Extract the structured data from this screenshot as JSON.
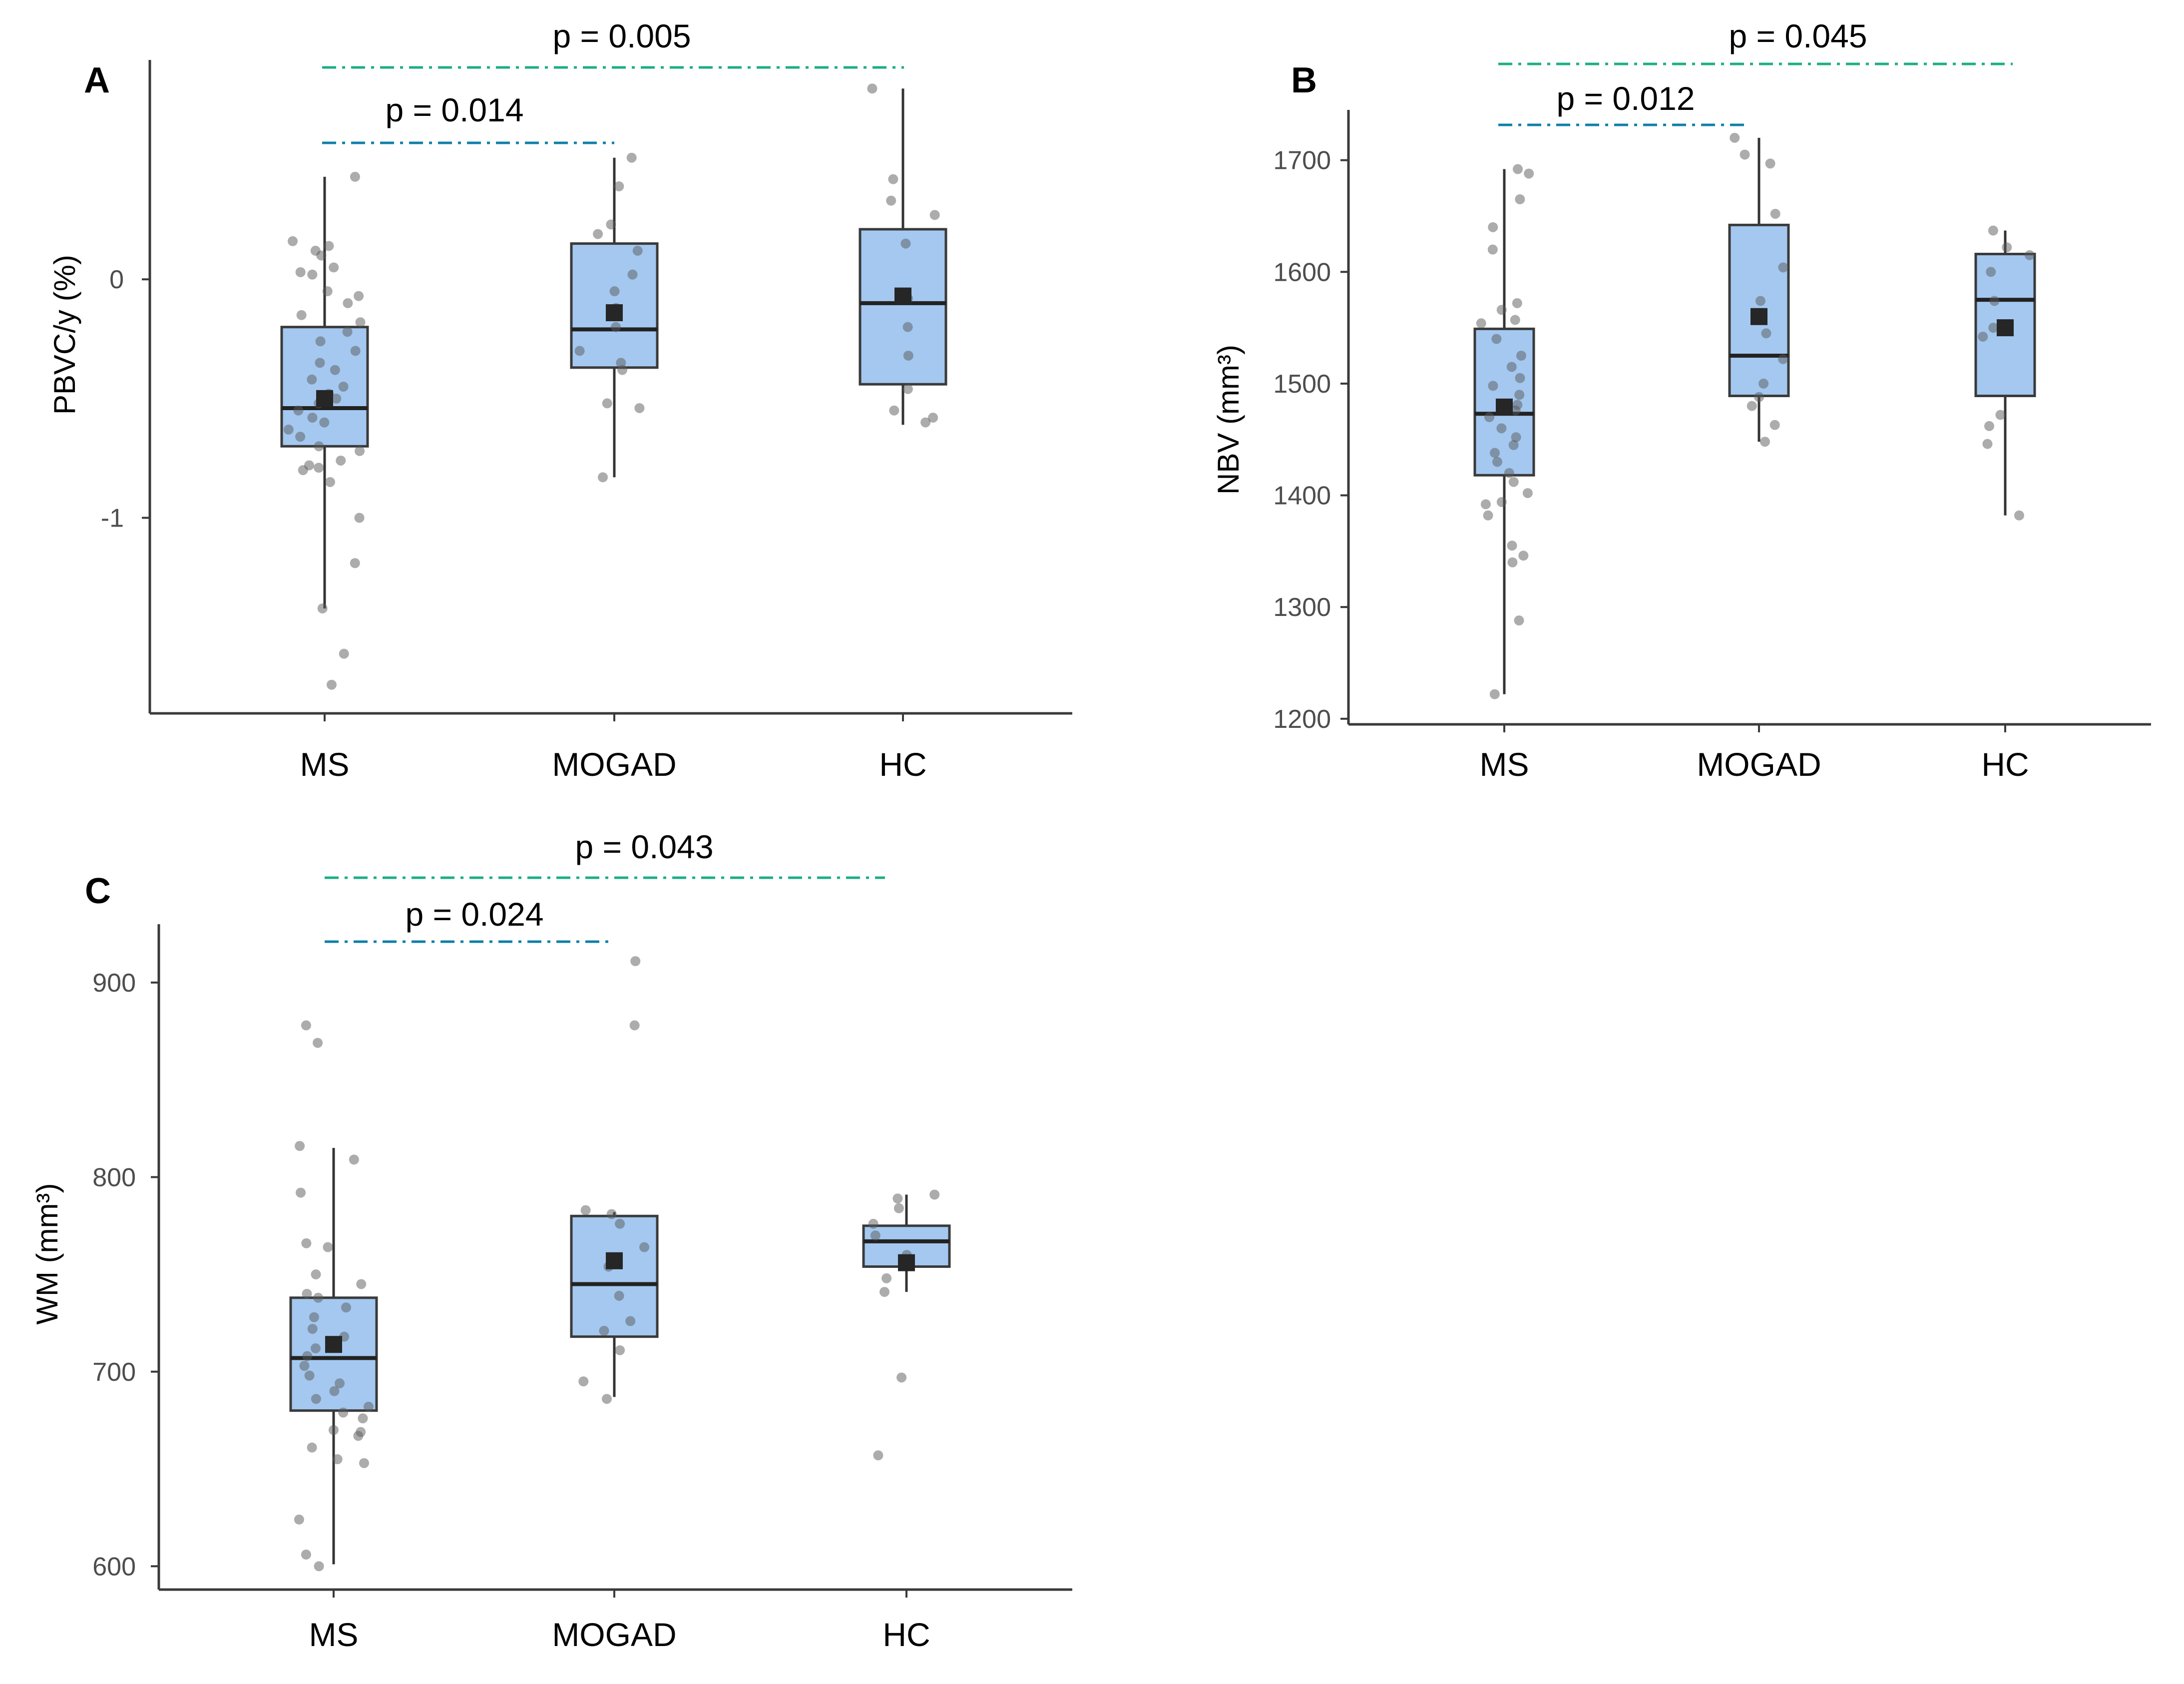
{
  "colors": {
    "box_fill": "#a4c8f0",
    "sig_line_near": "#0e7fa8",
    "sig_line_far": "#1aae84"
  },
  "chart_data": [
    {
      "type": "box",
      "panel": "A",
      "title": "",
      "xlabel": "",
      "ylabel": "PBVC/y (%)",
      "ylim": [
        -1.82,
        0.92
      ],
      "yticks": [
        0,
        -1
      ],
      "ytick_labels": [
        "0",
        "-1"
      ],
      "categories": [
        "MS",
        "MOGAD",
        "HC"
      ],
      "boxes": [
        {
          "name": "MS",
          "q1": -0.7,
          "median": -0.54,
          "q3": -0.2,
          "whisker_low": -1.38,
          "whisker_high": 0.43,
          "mean": -0.5,
          "points": [
            0.43,
            0.16,
            0.14,
            0.12,
            0.1,
            0.05,
            0.03,
            0.02,
            -0.05,
            -0.07,
            -0.1,
            -0.15,
            -0.18,
            -0.22,
            -0.26,
            -0.3,
            -0.35,
            -0.38,
            -0.42,
            -0.45,
            -0.48,
            -0.5,
            -0.52,
            -0.55,
            -0.58,
            -0.6,
            -0.63,
            -0.66,
            -0.7,
            -0.72,
            -0.76,
            -0.78,
            -0.79,
            -0.8,
            -0.85,
            -1.0,
            -1.19,
            -1.38,
            -1.57,
            -1.7
          ]
        },
        {
          "name": "MOGAD",
          "q1": -0.37,
          "median": -0.21,
          "q3": 0.15,
          "whisker_low": -0.83,
          "whisker_high": 0.51,
          "mean": -0.14,
          "points": [
            0.51,
            0.39,
            0.23,
            0.19,
            0.12,
            0.02,
            -0.05,
            -0.12,
            -0.2,
            -0.3,
            -0.35,
            -0.38,
            -0.52,
            -0.54,
            -0.83
          ]
        },
        {
          "name": "HC",
          "q1": -0.44,
          "median": -0.1,
          "q3": 0.21,
          "whisker_low": -0.61,
          "whisker_high": 0.8,
          "mean": -0.07,
          "points": [
            0.8,
            0.42,
            0.33,
            0.27,
            0.15,
            -0.08,
            -0.2,
            -0.32,
            -0.46,
            -0.55,
            -0.58,
            -0.6
          ]
        }
      ],
      "annotations": [
        {
          "text": "p = 0.014",
          "from": "MS",
          "to": "MOGAD"
        },
        {
          "text": "p = 0.005",
          "from": "MS",
          "to": "HC"
        }
      ]
    },
    {
      "type": "box",
      "panel": "B",
      "title": "",
      "xlabel": "",
      "ylabel": "NBV (mm³)",
      "ylim": [
        1195,
        1745
      ],
      "yticks": [
        1700,
        1600,
        1500,
        1400,
        1300,
        1200
      ],
      "ytick_labels": [
        "1700",
        "1600",
        "1500",
        "1400",
        "1300",
        "1200"
      ],
      "categories": [
        "MS",
        "MOGAD",
        "HC"
      ],
      "boxes": [
        {
          "name": "MS",
          "q1": 1418,
          "median": 1473,
          "q3": 1549,
          "whisker_low": 1222,
          "whisker_high": 1692,
          "mean": 1479,
          "points": [
            1692,
            1688,
            1665,
            1640,
            1620,
            1572,
            1566,
            1557,
            1554,
            1540,
            1525,
            1515,
            1505,
            1498,
            1490,
            1481,
            1476,
            1470,
            1460,
            1452,
            1445,
            1438,
            1430,
            1420,
            1412,
            1402,
            1394,
            1392,
            1382,
            1355,
            1346,
            1340,
            1288,
            1222
          ]
        },
        {
          "name": "MOGAD",
          "q1": 1489,
          "median": 1525,
          "q3": 1642,
          "whisker_low": 1448,
          "whisker_high": 1720,
          "mean": 1560,
          "points": [
            1720,
            1705,
            1697,
            1652,
            1604,
            1574,
            1545,
            1522,
            1500,
            1488,
            1480,
            1463,
            1448
          ]
        },
        {
          "name": "HC",
          "q1": 1489,
          "median": 1575,
          "q3": 1616,
          "whisker_low": 1382,
          "whisker_high": 1637,
          "mean": 1550,
          "points": [
            1637,
            1622,
            1615,
            1600,
            1574,
            1550,
            1542,
            1472,
            1462,
            1446,
            1382
          ]
        }
      ],
      "annotations": [
        {
          "text": "p = 0.012",
          "from": "MS",
          "to": "MOGAD"
        },
        {
          "text": "p = 0.045",
          "from": "MS",
          "to": "HC"
        }
      ]
    },
    {
      "type": "box",
      "panel": "C",
      "title": "",
      "xlabel": "",
      "ylabel": "WM (mm³)",
      "ylim": [
        588,
        930
      ],
      "yticks": [
        900,
        800,
        700,
        600
      ],
      "ytick_labels": [
        "900",
        "800",
        "700",
        "600"
      ],
      "categories": [
        "MS",
        "MOGAD",
        "HC"
      ],
      "boxes": [
        {
          "name": "MS",
          "q1": 680,
          "median": 707,
          "q3": 738,
          "whisker_low": 601,
          "whisker_high": 815,
          "mean": 714,
          "points": [
            878,
            869,
            816,
            809,
            792,
            766,
            764,
            750,
            745,
            740,
            738,
            733,
            728,
            722,
            718,
            712,
            708,
            703,
            698,
            694,
            690,
            686,
            682,
            679,
            676,
            670,
            669,
            667,
            661,
            655,
            653,
            624,
            606,
            600
          ]
        },
        {
          "name": "MOGAD",
          "q1": 718,
          "median": 745,
          "q3": 780,
          "whisker_low": 687,
          "whisker_high": 782,
          "mean": 757,
          "points": [
            911,
            878,
            783,
            781,
            776,
            764,
            754,
            739,
            726,
            721,
            711,
            695,
            686
          ]
        },
        {
          "name": "HC",
          "q1": 754,
          "median": 767,
          "q3": 775,
          "whisker_low": 741,
          "whisker_high": 791,
          "mean": 756,
          "points": [
            791,
            789,
            784,
            776,
            770,
            760,
            748,
            741,
            697,
            657
          ]
        }
      ],
      "annotations": [
        {
          "text": "p = 0.024",
          "from": "MS",
          "to": "MOGAD"
        },
        {
          "text": "p = 0.043",
          "from": "MS",
          "to": "HC"
        }
      ]
    }
  ]
}
